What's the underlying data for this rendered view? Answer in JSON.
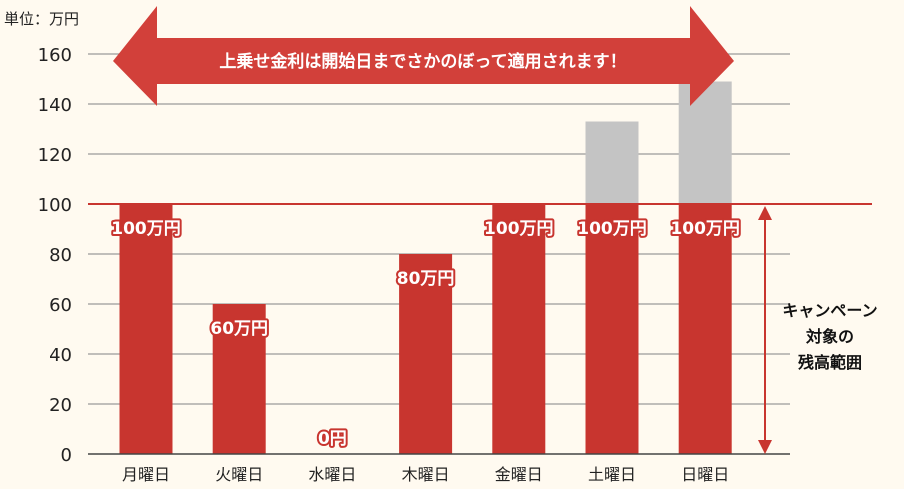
{
  "chart_data": {
    "type": "bar",
    "unit_label": "単位：万円",
    "categories": [
      "月曜日",
      "火曜日",
      "水曜日",
      "木曜日",
      "金曜日",
      "土曜日",
      "日曜日"
    ],
    "series": [
      {
        "values": [
          100,
          60,
          0,
          80,
          100,
          133,
          149
        ]
      }
    ],
    "campaign_cap": 100,
    "data_labels": [
      "100万円",
      "60万円",
      "0円",
      "80万円",
      "100万円",
      "100万円",
      "100万円"
    ],
    "yticks": [
      0,
      20,
      40,
      60,
      80,
      100,
      120,
      140,
      160
    ],
    "ylim": [
      0,
      160
    ],
    "grid": true,
    "banner_text": "上乗せ金利は開始日までさかのぼって適用されます！",
    "range_annotation": [
      "キャンペーン",
      "対象の",
      "残高範囲"
    ],
    "colors": {
      "bar_in_range": "#c8352f",
      "bar_over_range": "#c4c4c4",
      "cap_line": "#c8352f",
      "grid": "#9a9a9a",
      "banner": "#d2403a"
    }
  }
}
